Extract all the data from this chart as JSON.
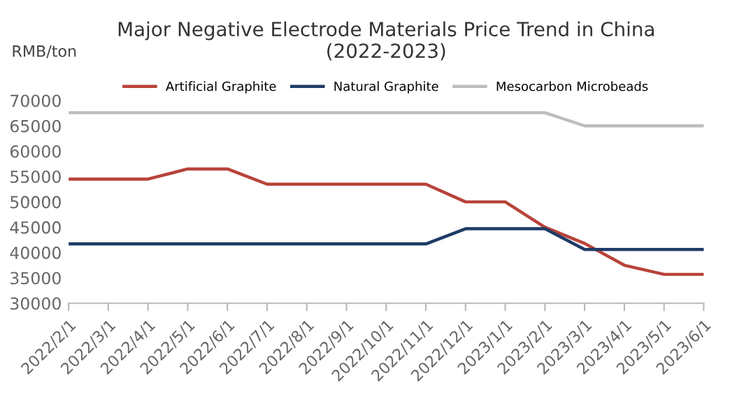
{
  "chart_data": {
    "type": "line",
    "title": "Major Negative Electrode Materials Price Trend in China\n(2022-2023)",
    "ylabel": "RMB/ton",
    "categories": [
      "2022/2/1",
      "2022/3/1",
      "2022/4/1",
      "2022/5/1",
      "2022/6/1",
      "2022/7/1",
      "2022/8/1",
      "2022/9/1",
      "2022/10/1",
      "2022/11/1",
      "2022/12/1",
      "2023/1/1",
      "2023/2/1",
      "2023/3/1",
      "2023/4/1",
      "2023/5/1",
      "2023/6/1"
    ],
    "series": [
      {
        "name": "Artificial Graphite",
        "color": "#b8433a",
        "values": [
          54500,
          54500,
          54500,
          56500,
          56500,
          53500,
          53500,
          53500,
          53500,
          53500,
          50000,
          50000,
          45000,
          41800,
          37500,
          35700,
          35700
        ]
      },
      {
        "name": "Natural Graphite",
        "color": "#1f3b66",
        "values": [
          41700,
          41700,
          41700,
          41700,
          41700,
          41700,
          41700,
          41700,
          41700,
          41700,
          44700,
          44700,
          44700,
          40600,
          40600,
          40600,
          40600
        ]
      },
      {
        "name": "Mesocarbon Microbeads",
        "color": "#bdbdbd",
        "values": [
          67600,
          67600,
          67600,
          67600,
          67600,
          67600,
          67600,
          67600,
          67600,
          67600,
          67600,
          67600,
          67600,
          65000,
          65000,
          65000,
          65000
        ]
      }
    ],
    "ylim": [
      30000,
      70000
    ],
    "yticks": [
      30000,
      35000,
      40000,
      45000,
      50000,
      55000,
      60000,
      65000,
      70000
    ],
    "legend": "top",
    "grid": false,
    "marker": "none",
    "line_style": "solid"
  }
}
